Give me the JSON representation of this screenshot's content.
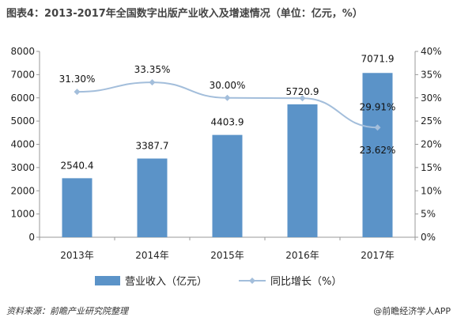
{
  "title": "图表4：2013-2017年全国数字出版产业收入及增速情况（单位：亿元，%）",
  "source": "资料来源：前瞻产业研究院整理",
  "brand": "@前瞻经济学人APP",
  "colors": {
    "bar": "#5b93c8",
    "line": "#a3bedb",
    "axis": "#999999"
  },
  "chart_data": {
    "type": "bar",
    "categories": [
      "2013年",
      "2014年",
      "2015年",
      "2016年",
      "2017年"
    ],
    "series": [
      {
        "name": "营业收入（亿元）",
        "type": "bar",
        "axis": "left",
        "values": [
          2540.4,
          3387.7,
          4403.9,
          5720.9,
          7071.9
        ],
        "labels": [
          "2540.4",
          "3387.7",
          "4403.9",
          "5720.9",
          "7071.9"
        ]
      },
      {
        "name": "同比增长（%）",
        "type": "line",
        "axis": "right",
        "values": [
          31.3,
          33.35,
          30.0,
          29.91,
          23.62
        ],
        "labels": [
          "31.30%",
          "33.35%",
          "30.00%",
          "29.91%",
          "23.62%"
        ]
      }
    ],
    "ylim_left": [
      0,
      8000
    ],
    "yticks_left": [
      "0",
      "1000",
      "2000",
      "3000",
      "4000",
      "5000",
      "6000",
      "7000",
      "8000"
    ],
    "ylim_right": [
      0,
      40
    ],
    "yticks_right": [
      "0%",
      "5%",
      "10%",
      "15%",
      "20%",
      "25%",
      "30%",
      "35%",
      "40%"
    ],
    "grid": false,
    "legend_position": "bottom"
  }
}
